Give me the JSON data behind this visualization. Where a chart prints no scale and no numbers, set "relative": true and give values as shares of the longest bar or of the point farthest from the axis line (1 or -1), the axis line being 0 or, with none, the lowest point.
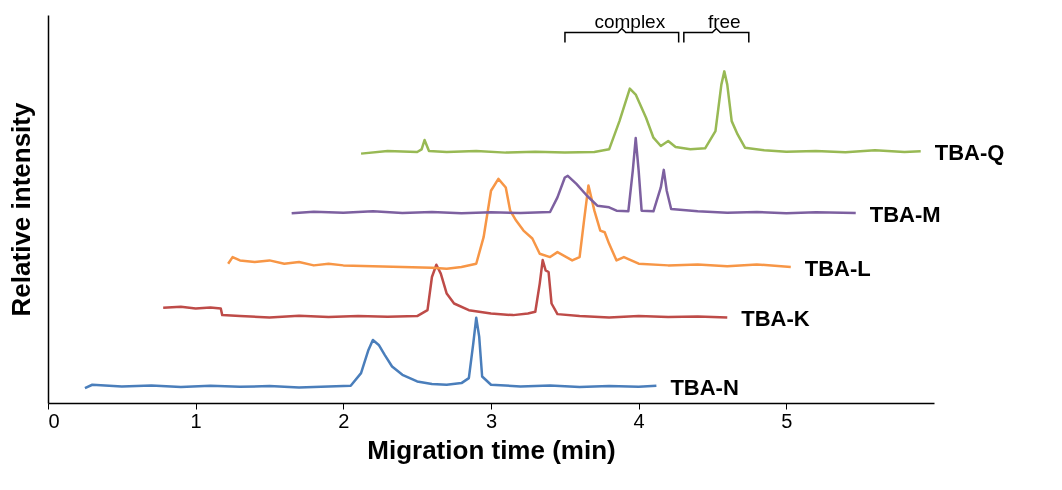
{
  "chart_data": {
    "type": "line",
    "relative": true,
    "xlabel": "Migration time  (min)",
    "ylabel": "Relative intensity",
    "xlim": [
      0,
      6
    ],
    "xticks": [
      0,
      1,
      2,
      3,
      4,
      5
    ],
    "grid": false,
    "legend": false,
    "marker": "none",
    "line_style": "solid",
    "annotations": [
      "complex",
      "free"
    ],
    "series": [
      {
        "name": "TBA-N",
        "color": "#4a7ebb",
        "x": [
          0.25,
          0.3,
          0.5,
          0.7,
          0.9,
          1.1,
          1.3,
          1.5,
          1.7,
          1.9,
          2.05,
          2.12,
          2.17,
          2.2,
          2.24,
          2.28,
          2.33,
          2.4,
          2.5,
          2.6,
          2.7,
          2.8,
          2.85,
          2.88,
          2.9,
          2.92,
          2.94,
          3.0,
          3.2,
          3.4,
          3.6,
          3.8,
          4.0,
          4.12
        ],
        "values": [
          0.045,
          0.055,
          0.05,
          0.053,
          0.048,
          0.052,
          0.049,
          0.051,
          0.047,
          0.05,
          0.052,
          0.09,
          0.16,
          0.19,
          0.175,
          0.145,
          0.11,
          0.085,
          0.065,
          0.057,
          0.055,
          0.06,
          0.075,
          0.18,
          0.257,
          0.2,
          0.08,
          0.055,
          0.05,
          0.053,
          0.048,
          0.051,
          0.049,
          0.052
        ]
      },
      {
        "name": "TBA-K",
        "color": "#be4b48",
        "x": [
          0.78,
          0.9,
          1.0,
          1.1,
          1.17,
          1.18,
          1.3,
          1.5,
          1.7,
          1.9,
          2.1,
          2.3,
          2.5,
          2.57,
          2.6,
          2.63,
          2.66,
          2.7,
          2.75,
          2.85,
          3.0,
          3.15,
          3.25,
          3.3,
          3.33,
          3.35,
          3.37,
          3.39,
          3.41,
          3.45,
          3.6,
          3.8,
          4.0,
          4.2,
          4.4,
          4.6
        ],
        "values": [
          0.287,
          0.29,
          0.285,
          0.288,
          0.285,
          0.265,
          0.262,
          0.258,
          0.263,
          0.259,
          0.262,
          0.26,
          0.262,
          0.28,
          0.38,
          0.417,
          0.39,
          0.33,
          0.3,
          0.28,
          0.27,
          0.265,
          0.27,
          0.275,
          0.36,
          0.431,
          0.4,
          0.395,
          0.3,
          0.268,
          0.262,
          0.258,
          0.262,
          0.259,
          0.261,
          0.258
        ]
      },
      {
        "name": "TBA-L",
        "color": "#f79646",
        "x": [
          1.22,
          1.25,
          1.3,
          1.4,
          1.5,
          1.6,
          1.7,
          1.8,
          1.9,
          2.0,
          2.2,
          2.4,
          2.6,
          2.7,
          2.8,
          2.9,
          2.95,
          3.0,
          3.05,
          3.1,
          3.13,
          3.17,
          3.22,
          3.28,
          3.33,
          3.4,
          3.45,
          3.55,
          3.6,
          3.63,
          3.66,
          3.7,
          3.74,
          3.77,
          3.8,
          3.85,
          3.9,
          4.0,
          4.2,
          4.4,
          4.6,
          4.8,
          5.03
        ],
        "values": [
          0.42,
          0.44,
          0.43,
          0.425,
          0.43,
          0.42,
          0.425,
          0.415,
          0.42,
          0.415,
          0.412,
          0.41,
          0.408,
          0.405,
          0.41,
          0.42,
          0.5,
          0.64,
          0.676,
          0.65,
          0.58,
          0.55,
          0.52,
          0.496,
          0.45,
          0.44,
          0.455,
          0.43,
          0.44,
          0.55,
          0.656,
          0.58,
          0.52,
          0.515,
          0.48,
          0.43,
          0.44,
          0.42,
          0.415,
          0.418,
          0.412,
          0.418,
          0.41
        ]
      },
      {
        "name": "TBA-M",
        "color": "#7d60a0",
        "x": [
          1.65,
          1.8,
          2.0,
          2.2,
          2.4,
          2.6,
          2.8,
          3.0,
          3.2,
          3.4,
          3.45,
          3.5,
          3.52,
          3.58,
          3.65,
          3.72,
          3.8,
          3.85,
          3.93,
          3.96,
          3.98,
          4.0,
          4.02,
          4.1,
          4.15,
          4.17,
          4.19,
          4.22,
          4.4,
          4.6,
          4.8,
          5.0,
          5.2,
          5.47
        ],
        "values": [
          0.572,
          0.577,
          0.574,
          0.578,
          0.573,
          0.576,
          0.572,
          0.575,
          0.573,
          0.576,
          0.62,
          0.68,
          0.685,
          0.66,
          0.625,
          0.595,
          0.59,
          0.58,
          0.578,
          0.7,
          0.799,
          0.7,
          0.58,
          0.578,
          0.65,
          0.703,
          0.64,
          0.585,
          0.578,
          0.574,
          0.576,
          0.572,
          0.575,
          0.573
        ]
      },
      {
        "name": "TBA-Q",
        "color": "#98b954",
        "x": [
          2.12,
          2.3,
          2.5,
          2.53,
          2.55,
          2.58,
          2.7,
          2.9,
          3.1,
          3.3,
          3.5,
          3.7,
          3.8,
          3.87,
          3.94,
          3.98,
          4.05,
          4.1,
          4.15,
          4.2,
          4.25,
          4.35,
          4.45,
          4.52,
          4.56,
          4.58,
          4.6,
          4.63,
          4.67,
          4.72,
          4.85,
          5.0,
          5.2,
          5.4,
          5.6,
          5.8,
          5.91
        ],
        "values": [
          0.752,
          0.76,
          0.757,
          0.765,
          0.793,
          0.76,
          0.757,
          0.76,
          0.755,
          0.758,
          0.755,
          0.757,
          0.765,
          0.85,
          0.948,
          0.93,
          0.86,
          0.8,
          0.775,
          0.79,
          0.772,
          0.765,
          0.768,
          0.82,
          0.96,
          1,
          0.96,
          0.85,
          0.81,
          0.77,
          0.762,
          0.758,
          0.76,
          0.756,
          0.762,
          0.757,
          0.759
        ]
      }
    ]
  }
}
